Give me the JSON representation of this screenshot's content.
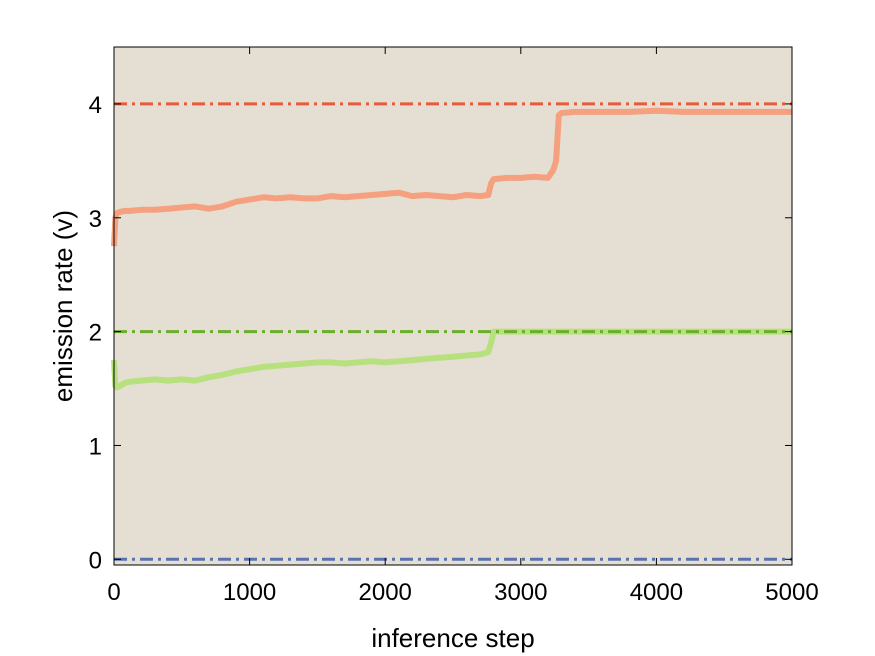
{
  "chart_data": {
    "type": "line",
    "title": "",
    "xlabel": "inference step",
    "ylabel": "emission rate (v)",
    "xlim": [
      0,
      5000
    ],
    "ylim": [
      -0.05,
      4.5
    ],
    "xticks": [
      0,
      1000,
      2000,
      3000,
      4000,
      5000
    ],
    "yticks": [
      0,
      1,
      2,
      3,
      4
    ],
    "grid": false,
    "legend": "none",
    "background_color": "#e5dfd3",
    "series": [
      {
        "style": "solid",
        "color": "#f5a07f",
        "x": [
          0,
          10,
          20,
          40,
          80,
          120,
          200,
          300,
          400,
          500,
          600,
          700,
          800,
          900,
          1000,
          1100,
          1200,
          1300,
          1400,
          1500,
          1600,
          1700,
          1800,
          1900,
          2000,
          2100,
          2200,
          2300,
          2400,
          2500,
          2600,
          2700,
          2760,
          2780,
          2800,
          2900,
          3000,
          3100,
          3200,
          3240,
          3260,
          3280,
          3300,
          3400,
          3600,
          3800,
          4000,
          4200,
          4400,
          4600,
          4800,
          5000
        ],
        "y": [
          2.75,
          3.0,
          3.04,
          3.05,
          3.06,
          3.06,
          3.07,
          3.07,
          3.08,
          3.09,
          3.1,
          3.08,
          3.1,
          3.14,
          3.16,
          3.18,
          3.17,
          3.18,
          3.17,
          3.17,
          3.19,
          3.18,
          3.19,
          3.2,
          3.21,
          3.22,
          3.19,
          3.2,
          3.19,
          3.18,
          3.2,
          3.19,
          3.2,
          3.3,
          3.34,
          3.35,
          3.35,
          3.36,
          3.35,
          3.42,
          3.5,
          3.9,
          3.92,
          3.93,
          3.93,
          3.93,
          3.94,
          3.93,
          3.93,
          3.93,
          3.93,
          3.93
        ]
      },
      {
        "style": "solid",
        "color": "#b7e07e",
        "x": [
          0,
          10,
          20,
          40,
          80,
          120,
          200,
          300,
          400,
          500,
          600,
          700,
          800,
          900,
          1000,
          1100,
          1200,
          1300,
          1400,
          1500,
          1600,
          1700,
          1800,
          1900,
          2000,
          2100,
          2200,
          2300,
          2400,
          2500,
          2600,
          2700,
          2760,
          2780,
          2800,
          3000,
          3500,
          4000,
          4500,
          5000
        ],
        "y": [
          1.75,
          1.52,
          1.51,
          1.52,
          1.55,
          1.56,
          1.57,
          1.58,
          1.57,
          1.58,
          1.57,
          1.6,
          1.62,
          1.65,
          1.67,
          1.69,
          1.7,
          1.71,
          1.72,
          1.73,
          1.73,
          1.72,
          1.73,
          1.74,
          1.73,
          1.74,
          1.75,
          1.76,
          1.77,
          1.78,
          1.79,
          1.8,
          1.82,
          1.9,
          2.0,
          2.0,
          2.0,
          2.0,
          2.0,
          2.0
        ]
      },
      {
        "style": "dashdot",
        "color": "#e65b3a",
        "x": [
          0,
          5000
        ],
        "y": [
          4.0,
          4.0
        ]
      },
      {
        "style": "dashdot",
        "color": "#6aaf2a",
        "x": [
          0,
          5000
        ],
        "y": [
          2.0,
          2.0
        ]
      },
      {
        "style": "dashdot",
        "color": "#5a73b0",
        "x": [
          0,
          5000
        ],
        "y": [
          0.0,
          0.0
        ]
      }
    ]
  }
}
